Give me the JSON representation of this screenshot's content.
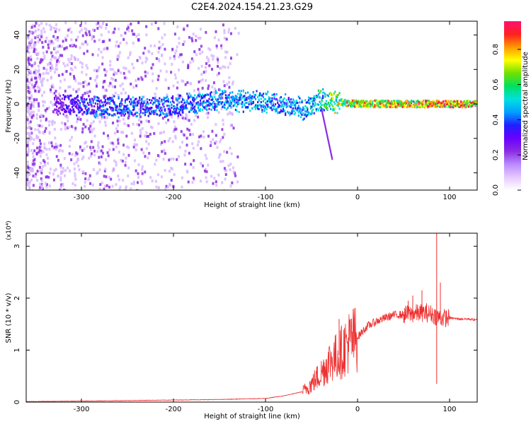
{
  "figure": {
    "title": "C2E4.2024.154.21.23.G29"
  },
  "colors": {
    "series_line": "#ee2e2e",
    "background": "#ffffff",
    "axis": "#000000",
    "colormap": [
      "#ffffff",
      "#e6c9ff",
      "#b88aff",
      "#8a2be2",
      "#6a00ff",
      "#2020ff",
      "#00a0ff",
      "#00e0e0",
      "#00e060",
      "#70e000",
      "#ffff00",
      "#ff9900",
      "#ff2020",
      "#ff1070"
    ]
  },
  "chart_data": [
    {
      "type": "heatmap",
      "title": "",
      "xlabel": "Height of straight line (km)",
      "ylabel": "Frequency (Hz)",
      "xlim": [
        -360,
        130
      ],
      "ylim": [
        -50,
        48
      ],
      "xticks": [
        -300,
        -200,
        -100,
        0,
        100
      ],
      "yticks": [
        40,
        20,
        0,
        -20,
        -40
      ],
      "colorbar": {
        "label": "Normalized spectral amplitude",
        "range": [
          0.0,
          0.96
        ],
        "ticks": [
          0.0,
          0.2,
          0.4,
          0.6,
          0.8
        ]
      },
      "ridge": {
        "description_points": [
          {
            "height": -330,
            "freq_center": 0,
            "amp": 0.25
          },
          {
            "height": -300,
            "freq_center": -1,
            "amp": 0.4
          },
          {
            "height": -250,
            "freq_center": -2,
            "amp": 0.45
          },
          {
            "height": -200,
            "freq_center": -1,
            "amp": 0.45
          },
          {
            "height": -150,
            "freq_center": 2,
            "amp": 0.5
          },
          {
            "height": -100,
            "freq_center": 1,
            "amp": 0.5
          },
          {
            "height": -60,
            "freq_center": -3,
            "amp": 0.5
          },
          {
            "height": -40,
            "freq_center": 2,
            "amp": 0.6
          },
          {
            "height": -20,
            "freq_center": 1,
            "amp": 0.8
          },
          {
            "height": 0,
            "freq_center": 0,
            "amp": 0.85
          },
          {
            "height": 50,
            "freq_center": 0,
            "amp": 0.9
          },
          {
            "height": 90,
            "freq_center": 0,
            "amp": 0.95
          },
          {
            "height": 130,
            "freq_center": 0,
            "amp": 0.9
          }
        ]
      }
    },
    {
      "type": "line",
      "title": "",
      "xlabel": "Height of straight line (km)",
      "ylabel": "SNR (10 * v/v)",
      "yscale_label": "(x10⁴)",
      "xlim": [
        -360,
        130
      ],
      "ylim": [
        0,
        3.25
      ],
      "xticks": [
        -300,
        -200,
        -100,
        0,
        100
      ],
      "yticks": [
        0,
        1,
        2,
        3
      ],
      "series": [
        {
          "x": [
            -360,
            -300,
            -250,
            -200,
            -150,
            -100,
            -80,
            -60,
            -50,
            -40,
            -30,
            -20,
            -10,
            0,
            10,
            20,
            30,
            40,
            50,
            60,
            70,
            80,
            86,
            90,
            95,
            100,
            110,
            120,
            130
          ],
          "y": [
            0.01,
            0.02,
            0.03,
            0.04,
            0.05,
            0.07,
            0.12,
            0.2,
            0.35,
            0.55,
            0.8,
            0.9,
            1.15,
            1.25,
            1.45,
            1.55,
            1.62,
            1.68,
            1.68,
            1.7,
            1.72,
            1.7,
            1.65,
            1.62,
            1.62,
            1.62,
            1.6,
            1.6,
            1.58
          ],
          "spikes": [
            {
              "x": -20,
              "y": 1.6
            },
            {
              "x": 55,
              "y": 1.95
            },
            {
              "x": 60,
              "y": 2.05
            },
            {
              "x": 70,
              "y": 2.15
            },
            {
              "x": 75,
              "y": 1.9
            },
            {
              "x": 86,
              "y": 3.25
            },
            {
              "x": 86,
              "y": 0.35
            },
            {
              "x": 90,
              "y": 2.3
            }
          ]
        }
      ]
    }
  ]
}
